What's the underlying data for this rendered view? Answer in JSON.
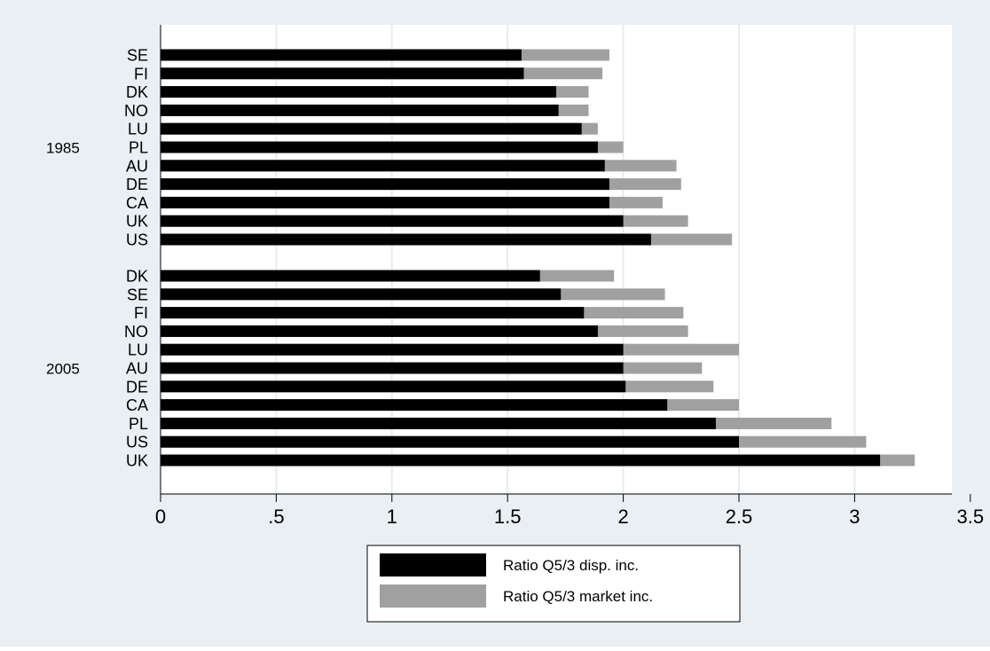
{
  "chart_data": {
    "type": "bar",
    "orientation": "horizontal",
    "stacked": true,
    "groups": [
      {
        "name": "1985",
        "categories": [
          "SE",
          "FI",
          "DK",
          "NO",
          "LU",
          "PL",
          "AU",
          "DE",
          "CA",
          "UK",
          "US"
        ],
        "disp": [
          1.56,
          1.57,
          1.71,
          1.72,
          1.82,
          1.89,
          1.92,
          1.94,
          1.94,
          2.0,
          2.12
        ],
        "market": [
          1.94,
          1.91,
          1.85,
          1.85,
          1.89,
          2.0,
          2.23,
          2.25,
          2.17,
          2.28,
          2.47
        ]
      },
      {
        "name": "2005",
        "categories": [
          "DK",
          "SE",
          "FI",
          "NO",
          "LU",
          "AU",
          "DE",
          "CA",
          "PL",
          "US",
          "UK"
        ],
        "disp": [
          1.64,
          1.73,
          1.83,
          1.89,
          2.0,
          2.0,
          2.01,
          2.19,
          2.4,
          2.5,
          3.11
        ],
        "market": [
          1.96,
          2.18,
          2.26,
          2.28,
          2.5,
          2.34,
          2.39,
          2.5,
          2.9,
          3.05,
          3.26
        ]
      }
    ],
    "series": [
      {
        "name": "Ratio Q5/3 disp. inc.",
        "color": "#000000"
      },
      {
        "name": "Ratio Q5/3 market inc.",
        "color": "#a0a0a0"
      }
    ],
    "xticks": [
      {
        "value": 0,
        "label": "0"
      },
      {
        "value": 0.5,
        "label": ".5"
      },
      {
        "value": 1,
        "label": "1"
      },
      {
        "value": 1.5,
        "label": "1.5"
      },
      {
        "value": 2,
        "label": "2"
      },
      {
        "value": 2.5,
        "label": "2.5"
      },
      {
        "value": 3,
        "label": "3"
      },
      {
        "value": 3.5,
        "label": "3.5"
      }
    ],
    "xlim": [
      0,
      3.5
    ],
    "grid": true,
    "legend_position": "bottom",
    "colors": {
      "outer_background": "#e9eff3",
      "plot_background": "#ffffff",
      "grid": "#e5edf1"
    }
  }
}
